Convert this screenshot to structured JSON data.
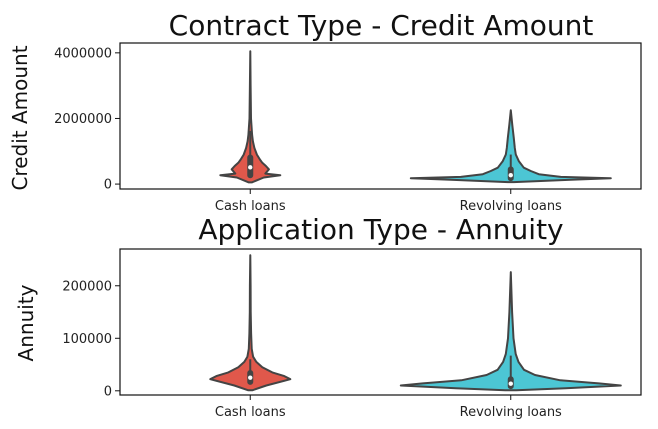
{
  "chart_data": [
    {
      "type": "violin",
      "title": "Contract Type - Credit Amount",
      "xlabel": "",
      "ylabel": "Credit Amount",
      "categories": [
        "Cash loans",
        "Revolving loans"
      ],
      "colors": [
        "#e0584b",
        "#4cc6d4"
      ],
      "yticks": [
        0,
        2000000,
        4000000
      ],
      "ytick_labels": [
        "0",
        "2000000",
        "4000000"
      ],
      "ylim": [
        -150000,
        4300000
      ],
      "violins": [
        {
          "category": "Cash loans",
          "max": 4050000,
          "q1": 270000,
          "median": 510000,
          "q3": 810000,
          "whisker_high": 1620000,
          "density": [
            [
              50000,
              0.05
            ],
            [
              200000,
              0.45
            ],
            [
              270000,
              1.0
            ],
            [
              320000,
              0.5
            ],
            [
              450000,
              0.62
            ],
            [
              550000,
              0.52
            ],
            [
              650000,
              0.4
            ],
            [
              750000,
              0.32
            ],
            [
              900000,
              0.22
            ],
            [
              1100000,
              0.14
            ],
            [
              1300000,
              0.09
            ],
            [
              1500000,
              0.06
            ],
            [
              2000000,
              0.025
            ],
            [
              3000000,
              0.012
            ],
            [
              4050000,
              0.0
            ]
          ]
        },
        {
          "category": "Revolving loans",
          "max": 2250000,
          "q1": 180000,
          "median": 270000,
          "q3": 450000,
          "whisker_high": 900000,
          "density": [
            [
              60000,
              0.03
            ],
            [
              130000,
              0.6
            ],
            [
              180000,
              1.0
            ],
            [
              220000,
              0.5
            ],
            [
              300000,
              0.28
            ],
            [
              400000,
              0.2
            ],
            [
              500000,
              0.13
            ],
            [
              700000,
              0.08
            ],
            [
              900000,
              0.05
            ],
            [
              1100000,
              0.04
            ],
            [
              1400000,
              0.03
            ],
            [
              1800000,
              0.015
            ],
            [
              2250000,
              0.0
            ]
          ]
        }
      ]
    },
    {
      "type": "violin",
      "title": "Application Type - Annuity",
      "xlabel": "",
      "ylabel": "Annuity",
      "categories": [
        "Cash loans",
        "Revolving loans"
      ],
      "colors": [
        "#e0584b",
        "#4cc6d4"
      ],
      "yticks": [
        0,
        100000,
        200000
      ],
      "ytick_labels": [
        "0",
        "100000",
        "200000"
      ],
      "ylim": [
        -8000,
        270000
      ],
      "violins": [
        {
          "category": "Cash loans",
          "max": 258000,
          "q1": 17000,
          "median": 25000,
          "q3": 34000,
          "whisker_high": 60000,
          "density": [
            [
              1000,
              0.05
            ],
            [
              10000,
              0.4
            ],
            [
              22000,
              1.0
            ],
            [
              28000,
              0.85
            ],
            [
              35000,
              0.55
            ],
            [
              45000,
              0.3
            ],
            [
              55000,
              0.15
            ],
            [
              65000,
              0.07
            ],
            [
              80000,
              0.035
            ],
            [
              110000,
              0.02
            ],
            [
              150000,
              0.012
            ],
            [
              200000,
              0.008
            ],
            [
              258000,
              0.0
            ]
          ]
        },
        {
          "category": "Revolving loans",
          "max": 226000,
          "q1": 9000,
          "median": 13500,
          "q3": 22000,
          "whisker_high": 67000,
          "density": [
            [
              1000,
              0.05
            ],
            [
              5000,
              0.5
            ],
            [
              10000,
              1.0
            ],
            [
              14000,
              0.8
            ],
            [
              20000,
              0.45
            ],
            [
              30000,
              0.22
            ],
            [
              40000,
              0.12
            ],
            [
              55000,
              0.07
            ],
            [
              70000,
              0.045
            ],
            [
              100000,
              0.025
            ],
            [
              150000,
              0.012
            ],
            [
              226000,
              0.0
            ]
          ]
        }
      ]
    }
  ]
}
